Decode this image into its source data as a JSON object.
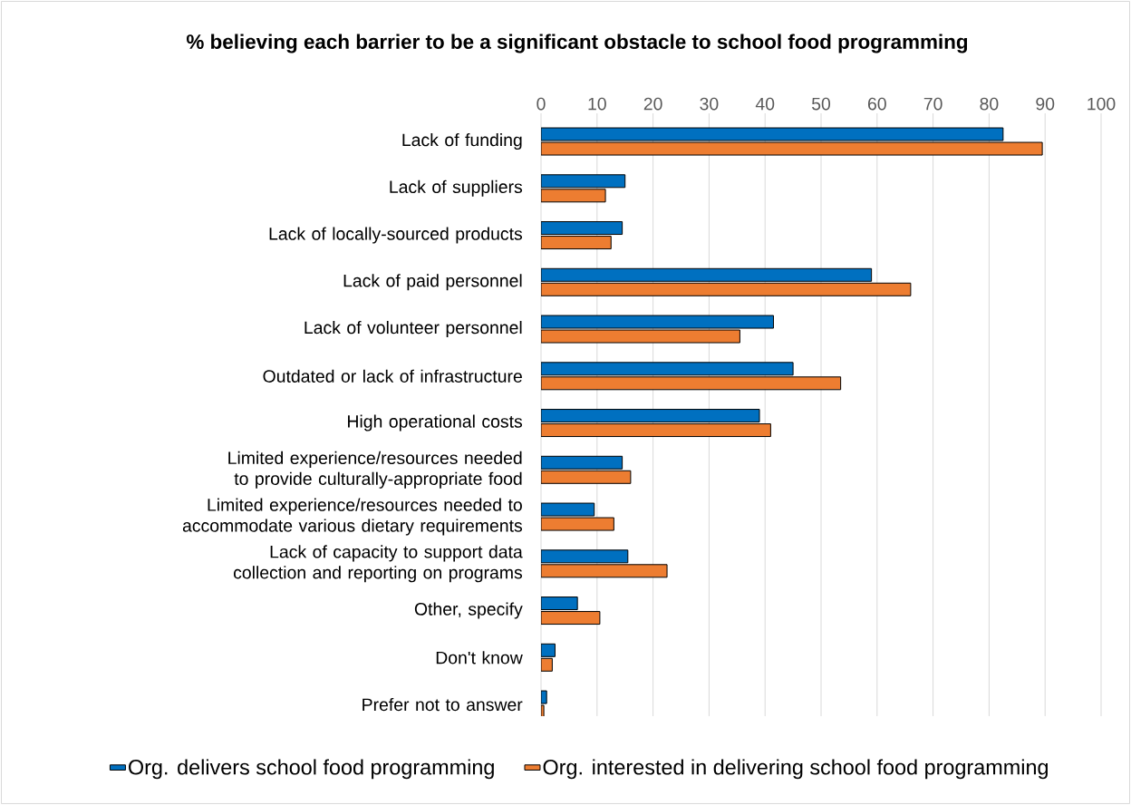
{
  "chart_data": {
    "type": "bar",
    "orientation": "horizontal",
    "title": "% believing each barrier to be a significant obstacle to school food programming",
    "categories": [
      "Lack of funding",
      "Lack of suppliers",
      "Lack of locally-sourced products",
      "Lack of paid personnel",
      "Lack of volunteer personnel",
      "Outdated or lack of infrastructure",
      "High operational costs",
      "Limited experience/resources needed to provide culturally-appropriate food",
      "Limited experience/resources needed to accommodate various dietary requirements",
      "Lack of capacity to support data collection and reporting on programs",
      "Other, specify",
      "Don't know",
      "Prefer not to answer"
    ],
    "series": [
      {
        "name": "Org. delivers school food programming",
        "color": "#0070c0",
        "values": [
          82.5,
          15,
          14.5,
          59,
          41.5,
          45,
          39,
          14.5,
          9.5,
          15.5,
          6.5,
          2.5,
          1
        ]
      },
      {
        "name": "Org. interested in delivering school food programming",
        "color": "#ed7d31",
        "values": [
          89.5,
          11.5,
          12.5,
          66,
          35.5,
          53.5,
          41,
          16,
          13,
          22.5,
          10.5,
          2,
          0.5
        ]
      }
    ],
    "xlim": [
      0,
      100
    ],
    "xticks": [
      0,
      10,
      20,
      30,
      40,
      50,
      60,
      70,
      80,
      90,
      100
    ],
    "grid": "x",
    "legend": "bottom"
  }
}
